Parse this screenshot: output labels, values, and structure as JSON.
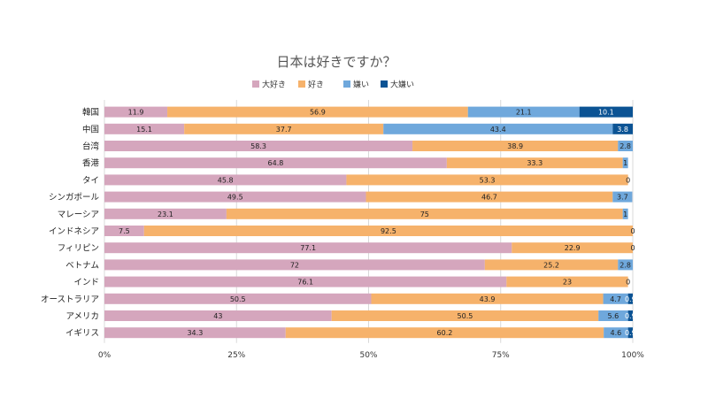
{
  "chart_data": {
    "type": "bar",
    "orientation": "horizontal",
    "stacked": "percent",
    "title": "日本は好きですか？",
    "legend_position": "top",
    "grid": true,
    "xlim": [
      0,
      100
    ],
    "x_ticks": [
      "0%",
      "25%",
      "50%",
      "75%",
      "100%"
    ],
    "categories": [
      "韓国",
      "中国",
      "台湾",
      "香港",
      "タイ",
      "シンガポール",
      "マレーシア",
      "インドネシア",
      "フィリピン",
      "ベトナム",
      "インド",
      "オーストラリア",
      "アメリカ",
      "イギリス"
    ],
    "series": [
      {
        "name": "大好き",
        "color": "#d5a6bd",
        "values": [
          11.9,
          15.1,
          58.3,
          64.8,
          45.8,
          49.5,
          23.1,
          7.5,
          77.1,
          72,
          76.1,
          50.5,
          43,
          34.3
        ]
      },
      {
        "name": "好き",
        "color": "#f6b26b",
        "values": [
          56.9,
          37.7,
          38.9,
          33.3,
          53.3,
          46.7,
          75,
          92.5,
          22.9,
          25.2,
          23,
          43.9,
          50.5,
          60.2
        ]
      },
      {
        "name": "嫌い",
        "color": "#6fa8dc",
        "values": [
          21.1,
          43.4,
          2.8,
          1,
          0,
          3.7,
          1,
          0,
          0,
          2.8,
          0,
          4.7,
          5.6,
          4.6
        ]
      },
      {
        "name": "大嫌い",
        "color": "#0b5394",
        "values": [
          10.1,
          3.8,
          0,
          0,
          0,
          0,
          0,
          0,
          0,
          0,
          0,
          0.9,
          0.9,
          0.9
        ]
      }
    ]
  }
}
